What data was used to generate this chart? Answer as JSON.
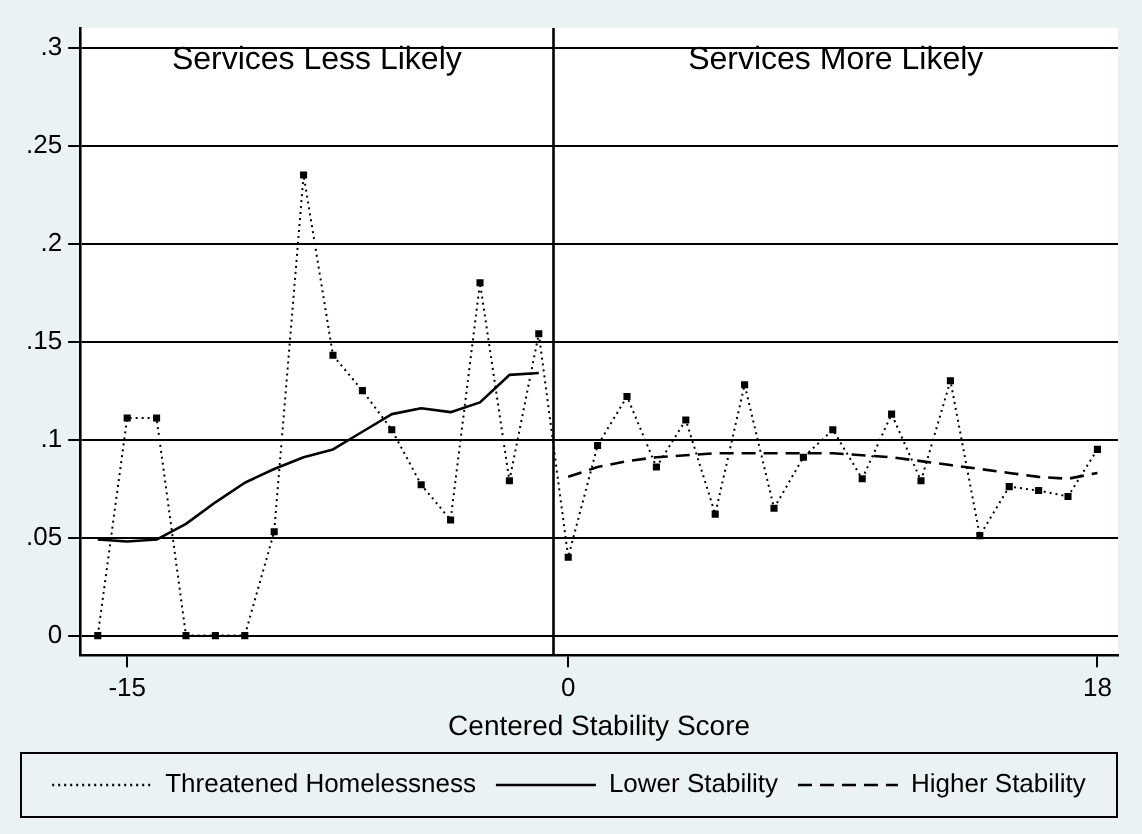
{
  "chart_data": {
    "type": "line",
    "xlabel": "Centered Stability Score",
    "xlim": [
      -16.6,
      18.7
    ],
    "xticks": [
      -15,
      0,
      18
    ],
    "ylim": [
      -0.01,
      0.31
    ],
    "yticks": [
      {
        "value": 0,
        "label": "0"
      },
      {
        "value": 0.05,
        "label": ".05"
      },
      {
        "value": 0.1,
        "label": ".1"
      },
      {
        "value": 0.15,
        "label": ".15"
      },
      {
        "value": 0.2,
        "label": ".2"
      },
      {
        "value": 0.25,
        "label": ".25"
      },
      {
        "value": 0.3,
        "label": ".3"
      }
    ],
    "grid": "y",
    "legend": "bottom",
    "annotations": [
      "Services Less Likely",
      "Services More Likely"
    ],
    "ref_lines": [
      {
        "axis": "x",
        "value": -0.5,
        "color": "#000000"
      }
    ],
    "series": [
      {
        "name": "Threatened Homelessness",
        "color": "#000000",
        "line_style": "dotted",
        "marker": "square",
        "x": [
          -16,
          -15,
          -14,
          -13,
          -12,
          -11,
          -10,
          -9,
          -8,
          -7,
          -6,
          -5,
          -4,
          -3,
          -2,
          -1,
          0,
          1,
          2,
          3,
          4,
          5,
          6,
          7,
          8,
          9,
          10,
          11,
          12,
          13,
          14,
          15,
          16,
          17,
          18
        ],
        "values": [
          0,
          0.111,
          0.111,
          0,
          0,
          0,
          0.053,
          0.235,
          0.143,
          0.125,
          0.105,
          0.077,
          0.059,
          0.18,
          0.079,
          0.154,
          0.04,
          0.097,
          0.122,
          0.086,
          0.11,
          0.062,
          0.128,
          0.065,
          0.091,
          0.105,
          0.08,
          0.113,
          0.079,
          0.13,
          0.051,
          0.076,
          0.074,
          0.071,
          0.095
        ]
      },
      {
        "name": "Lower Stability",
        "color": "#000000",
        "line_style": "solid",
        "marker": "none",
        "x": [
          -16,
          -15,
          -14,
          -13,
          -12,
          -11,
          -10,
          -9,
          -8,
          -7,
          -6,
          -5,
          -4,
          -3,
          -2,
          -1
        ],
        "values": [
          0.049,
          0.048,
          0.049,
          0.057,
          0.068,
          0.078,
          0.085,
          0.091,
          0.095,
          0.104,
          0.113,
          0.116,
          0.114,
          0.119,
          0.133,
          0.134
        ]
      },
      {
        "name": "Higher Stability",
        "color": "#000000",
        "line_style": "dashed",
        "marker": "none",
        "x": [
          0,
          1,
          2,
          3,
          4,
          5,
          6,
          7,
          8,
          9,
          10,
          11,
          12,
          13,
          14,
          15,
          16,
          17,
          18
        ],
        "values": [
          0.081,
          0.086,
          0.089,
          0.091,
          0.092,
          0.093,
          0.093,
          0.093,
          0.093,
          0.093,
          0.092,
          0.091,
          0.089,
          0.087,
          0.085,
          0.083,
          0.081,
          0.08,
          0.083
        ]
      }
    ]
  }
}
